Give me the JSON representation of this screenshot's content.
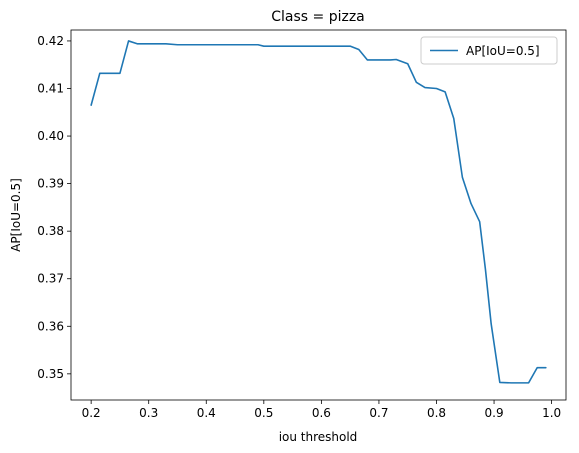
{
  "chart_data": {
    "type": "line",
    "title": "Class = pizza",
    "xlabel": "iou threshold",
    "ylabel": "AP[IoU=0.5]",
    "xlim": [
      0.165,
      1.025
    ],
    "ylim": [
      0.3445,
      0.4223
    ],
    "xticks": [
      0.2,
      0.3,
      0.4,
      0.5,
      0.6,
      0.7,
      0.8,
      0.9,
      1.0
    ],
    "xtick_labels": [
      "0.2",
      "0.3",
      "0.4",
      "0.5",
      "0.6",
      "0.7",
      "0.8",
      "0.9",
      "1.0"
    ],
    "yticks": [
      0.35,
      0.36,
      0.37,
      0.38,
      0.39,
      0.4,
      0.41,
      0.42
    ],
    "ytick_labels": [
      "0.35",
      "0.36",
      "0.37",
      "0.38",
      "0.39",
      "0.40",
      "0.41",
      "0.42"
    ],
    "grid": false,
    "legend": "top-right",
    "series": [
      {
        "name": "AP[IoU=0.5]",
        "color": "#1f77b4",
        "x": [
          0.2,
          0.215,
          0.23,
          0.25,
          0.265,
          0.28,
          0.3,
          0.33,
          0.35,
          0.4,
          0.45,
          0.49,
          0.5,
          0.55,
          0.6,
          0.65,
          0.665,
          0.68,
          0.7,
          0.72,
          0.73,
          0.75,
          0.765,
          0.78,
          0.8,
          0.815,
          0.83,
          0.845,
          0.86,
          0.875,
          0.885,
          0.895,
          0.91,
          0.93,
          0.96,
          0.975,
          0.99
        ],
        "y": [
          0.4065,
          0.4132,
          0.4132,
          0.4132,
          0.42,
          0.4194,
          0.4194,
          0.4194,
          0.4192,
          0.4192,
          0.4192,
          0.4192,
          0.4189,
          0.4189,
          0.4189,
          0.4189,
          0.4182,
          0.416,
          0.416,
          0.416,
          0.4161,
          0.4152,
          0.4113,
          0.4102,
          0.41,
          0.4093,
          0.4037,
          0.3913,
          0.3858,
          0.382,
          0.372,
          0.3605,
          0.3482,
          0.3481,
          0.3481,
          0.3513,
          0.3513
        ]
      }
    ]
  }
}
